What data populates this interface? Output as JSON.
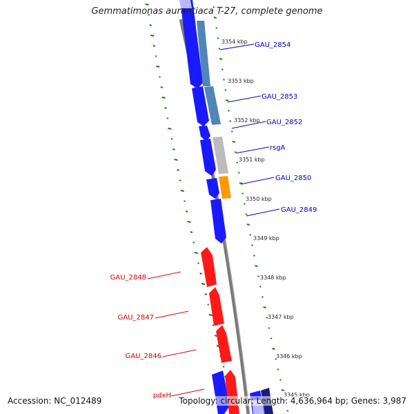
{
  "title": "Gemmatimonas aurantiaca T-27, complete genome",
  "footer": {
    "accession": "Accession: NC_012489",
    "topology": "Topology: circular; Length: 4,636,964 bp; Genes: 3,987"
  },
  "colors": {
    "forward_gene": "#1a1aff",
    "reverse_gene": "#ff1a1a",
    "blue_label": "#0000cc",
    "red_label": "#dd0000",
    "steelblue_feature": "#4f86b5",
    "gray_feature": "#bcbcbc",
    "orange_feature": "#ff9900",
    "gc_skew_dots": "#1d7a1d",
    "backbone": "#777777"
  },
  "scale_labels": [
    "3354 kbp",
    "3353 kbp",
    "3352 kbp",
    "3351 kbp",
    "3350 kbp",
    "3349 kbp",
    "3348 kbp",
    "3347 kbp",
    "3346 kbp",
    "3345 kbp"
  ],
  "forward_gene_labels": [
    "GAU_2854",
    "GAU_2853",
    "GAU_2852",
    "rsgA",
    "GAU_2850",
    "GAU_2849"
  ],
  "reverse_gene_labels": [
    "GAU_2848",
    "GAU_2847",
    "GAU_2846",
    "pdxH"
  ]
}
